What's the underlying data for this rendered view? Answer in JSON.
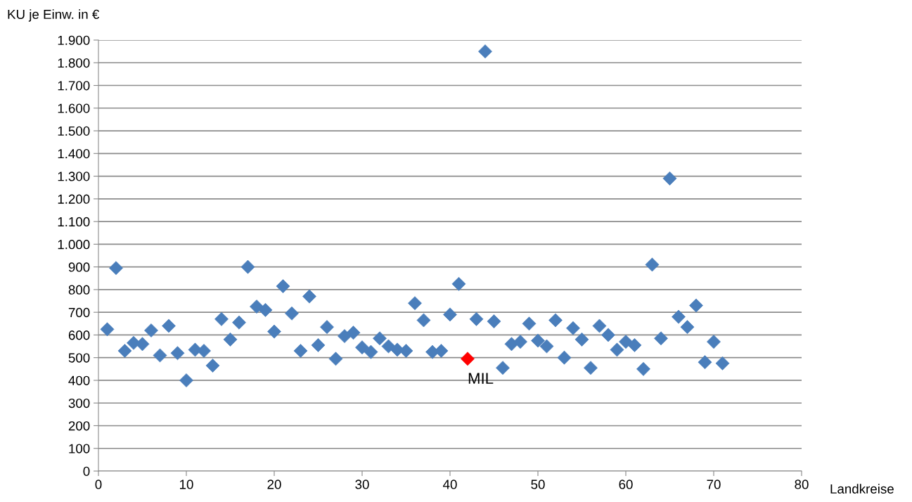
{
  "chart_data": {
    "type": "scatter",
    "xlabel": "Landkreise",
    "ylabel": "KU je Einw. in €",
    "series": [
      {
        "color": "#4a7ebb",
        "x": [
          1,
          2,
          3,
          4,
          5,
          6,
          7,
          8,
          9,
          10,
          11,
          12,
          13,
          14,
          15,
          16,
          17,
          18,
          19,
          20,
          21,
          22,
          23,
          24,
          25,
          26,
          27,
          28,
          29,
          30,
          31,
          32,
          33,
          34,
          35,
          36,
          37,
          38,
          39,
          40,
          41,
          43,
          44,
          45,
          46,
          47,
          48,
          49,
          50,
          51,
          52,
          53,
          54,
          55,
          56,
          57,
          58,
          59,
          60,
          61,
          62,
          63,
          64,
          65,
          66,
          67,
          68,
          69,
          70,
          71
        ],
        "values": [
          625,
          895,
          530,
          565,
          560,
          620,
          510,
          640,
          520,
          400,
          535,
          530,
          465,
          670,
          580,
          655,
          900,
          725,
          710,
          615,
          815,
          695,
          530,
          770,
          555,
          635,
          495,
          595,
          610,
          545,
          525,
          585,
          550,
          535,
          530,
          740,
          665,
          525,
          530,
          690,
          825,
          670,
          1850,
          660,
          455,
          560,
          570,
          650,
          575,
          550,
          665,
          500,
          630,
          580,
          455,
          640,
          600,
          535,
          570,
          555,
          450,
          910,
          585,
          1290,
          680,
          635,
          730,
          480,
          570,
          475
        ]
      },
      {
        "color": "#ff0000",
        "x": [
          42
        ],
        "values": [
          495
        ]
      }
    ],
    "annotations": [
      {
        "text": "MIL",
        "x": 42,
        "y": 495
      }
    ],
    "xlim": [
      0,
      80
    ],
    "xticks": [
      0,
      10,
      20,
      30,
      40,
      50,
      60,
      70,
      80
    ],
    "ylim": [
      0,
      1900
    ],
    "yticks": [
      0,
      100,
      200,
      300,
      400,
      500,
      600,
      700,
      800,
      900,
      {
        "value": 1000,
        "label": "1.000"
      },
      {
        "value": 1100,
        "label": "1.100"
      },
      {
        "value": 1200,
        "label": "1.200"
      },
      {
        "value": 1300,
        "label": "1.300"
      },
      {
        "value": 1400,
        "label": "1.400"
      },
      {
        "value": 1500,
        "label": "1.500"
      },
      {
        "value": 1600,
        "label": "1.600"
      },
      {
        "value": 1700,
        "label": "1.700"
      },
      {
        "value": 1800,
        "label": "1.800"
      },
      {
        "value": 1900,
        "label": "1.900"
      }
    ],
    "grid": "y",
    "marker": "diamond"
  }
}
